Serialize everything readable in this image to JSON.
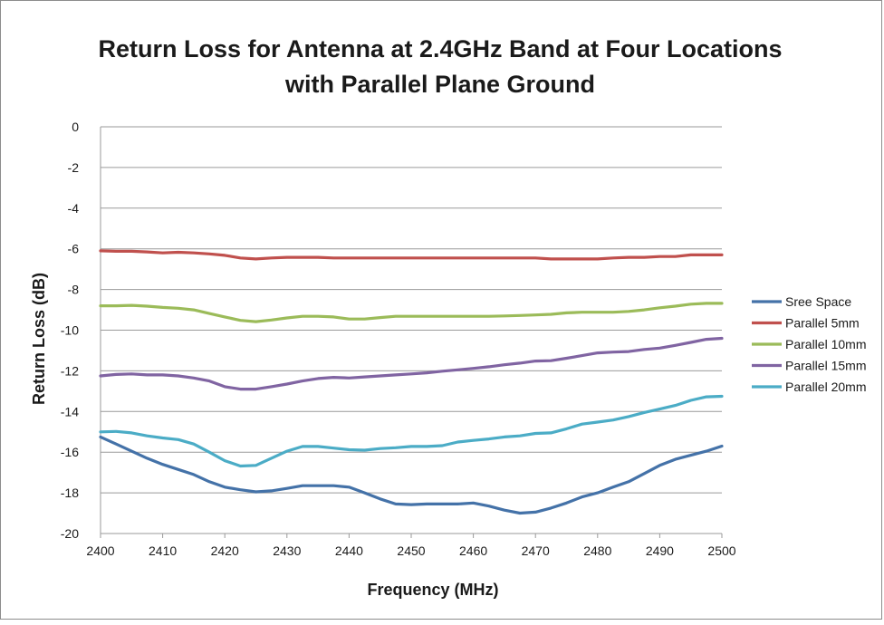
{
  "chart_data": {
    "type": "line",
    "title_lines": [
      "Return Loss for Antenna at 2.4GHz Band at Four Locations",
      "with Parallel Plane Ground"
    ],
    "xlabel": "Frequency  (MHz)",
    "ylabel": "Return Loss (dB)",
    "xlim": [
      2400,
      2500
    ],
    "ylim": [
      -20,
      0
    ],
    "x_ticks": [
      "2400",
      "2410",
      "2420",
      "2430",
      "2440",
      "2450",
      "2460",
      "2470",
      "2480",
      "2490",
      "2500"
    ],
    "y_ticks": [
      "0",
      "-2",
      "-4",
      "-6",
      "-8",
      "-10",
      "-12",
      "-14",
      "-16",
      "-18",
      "-20"
    ],
    "grid": true,
    "legend_position": "right",
    "x": [
      2400,
      2402.5,
      2405,
      2407.5,
      2410,
      2412.5,
      2415,
      2417.5,
      2420,
      2422.5,
      2425,
      2427.5,
      2430,
      2432.5,
      2435,
      2437.5,
      2440,
      2442.5,
      2445,
      2447.5,
      2450,
      2452.5,
      2455,
      2457.5,
      2460,
      2462.5,
      2465,
      2467.5,
      2470,
      2472.5,
      2475,
      2477.5,
      2480,
      2482.5,
      2485,
      2487.5,
      2490,
      2492.5,
      2495,
      2497.5,
      2500
    ],
    "series": [
      {
        "name": "Sree Space",
        "color": "#4472a8",
        "values": [
          -15.25,
          -15.6,
          -15.95,
          -16.3,
          -16.6,
          -16.85,
          -17.1,
          -17.45,
          -17.72,
          -17.85,
          -17.95,
          -17.9,
          -17.78,
          -17.65,
          -17.65,
          -17.65,
          -17.72,
          -18.0,
          -18.3,
          -18.55,
          -18.58,
          -18.55,
          -18.55,
          -18.55,
          -18.5,
          -18.65,
          -18.85,
          -19.0,
          -18.95,
          -18.75,
          -18.5,
          -18.2,
          -18.0,
          -17.72,
          -17.45,
          -17.05,
          -16.65,
          -16.35,
          -16.15,
          -15.95,
          -15.7
        ]
      },
      {
        "name": "Parallel 5mm",
        "color": "#c0504d",
        "values": [
          -6.1,
          -6.12,
          -6.12,
          -6.15,
          -6.2,
          -6.17,
          -6.2,
          -6.25,
          -6.32,
          -6.45,
          -6.5,
          -6.45,
          -6.42,
          -6.42,
          -6.42,
          -6.45,
          -6.45,
          -6.45,
          -6.45,
          -6.45,
          -6.45,
          -6.45,
          -6.45,
          -6.45,
          -6.45,
          -6.45,
          -6.45,
          -6.45,
          -6.45,
          -6.5,
          -6.5,
          -6.5,
          -6.5,
          -6.45,
          -6.42,
          -6.42,
          -6.38,
          -6.38,
          -6.3,
          -6.3,
          -6.3
        ]
      },
      {
        "name": "Parallel 10mm",
        "color": "#9bbb59",
        "values": [
          -8.8,
          -8.8,
          -8.78,
          -8.82,
          -8.88,
          -8.92,
          -9.0,
          -9.18,
          -9.35,
          -9.52,
          -9.58,
          -9.5,
          -9.4,
          -9.32,
          -9.32,
          -9.35,
          -9.45,
          -9.45,
          -9.38,
          -9.32,
          -9.32,
          -9.32,
          -9.32,
          -9.32,
          -9.32,
          -9.32,
          -9.3,
          -9.28,
          -9.25,
          -9.22,
          -9.15,
          -9.12,
          -9.12,
          -9.12,
          -9.08,
          -9.0,
          -8.9,
          -8.82,
          -8.72,
          -8.68,
          -8.68
        ]
      },
      {
        "name": "Parallel 15mm",
        "color": "#8064a2",
        "values": [
          -12.25,
          -12.18,
          -12.15,
          -12.2,
          -12.2,
          -12.25,
          -12.35,
          -12.5,
          -12.78,
          -12.9,
          -12.9,
          -12.78,
          -12.65,
          -12.5,
          -12.38,
          -12.32,
          -12.35,
          -12.3,
          -12.25,
          -12.2,
          -12.15,
          -12.1,
          -12.02,
          -11.95,
          -11.88,
          -11.8,
          -11.7,
          -11.62,
          -11.52,
          -11.5,
          -11.38,
          -11.25,
          -11.12,
          -11.08,
          -11.05,
          -10.95,
          -10.88,
          -10.75,
          -10.6,
          -10.45,
          -10.4
        ]
      },
      {
        "name": "Parallel 20mm",
        "color": "#4bacc6",
        "values": [
          -15.0,
          -14.98,
          -15.05,
          -15.2,
          -15.3,
          -15.38,
          -15.6,
          -16.0,
          -16.42,
          -16.68,
          -16.65,
          -16.3,
          -15.95,
          -15.72,
          -15.72,
          -15.8,
          -15.88,
          -15.9,
          -15.82,
          -15.78,
          -15.72,
          -15.72,
          -15.68,
          -15.5,
          -15.42,
          -15.35,
          -15.25,
          -15.2,
          -15.08,
          -15.05,
          -14.85,
          -14.62,
          -14.52,
          -14.42,
          -14.25,
          -14.05,
          -13.88,
          -13.7,
          -13.45,
          -13.28,
          -13.25
        ]
      }
    ]
  }
}
